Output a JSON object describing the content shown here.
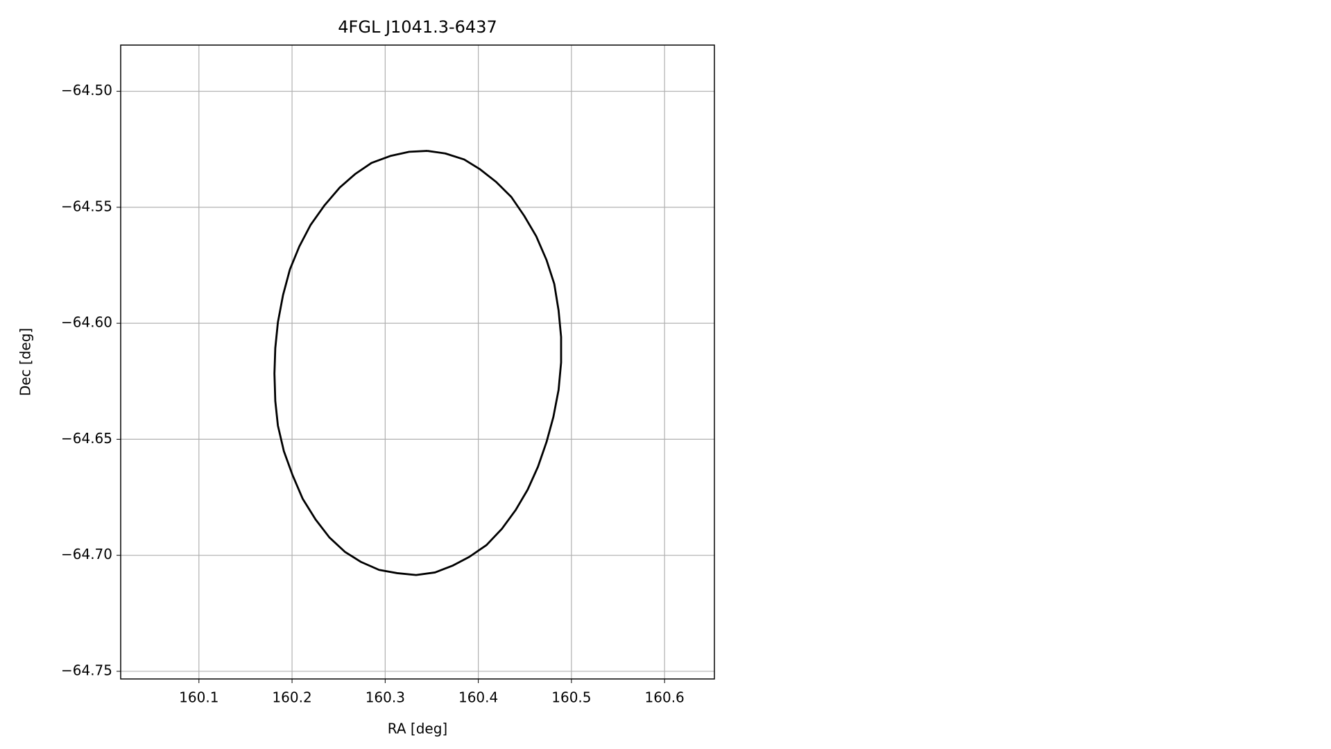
{
  "chart_data": {
    "type": "line",
    "title": "4FGL J1041.3-6437",
    "x_label": "RA [deg]",
    "y_label": "Dec [deg]",
    "color": "#000000",
    "grid": true,
    "xlim": [
      160.016,
      160.6535
    ],
    "ylim": [
      -64.7533,
      -64.4801
    ],
    "xticks": [
      160.1,
      160.2,
      160.3,
      160.4,
      160.5,
      160.6
    ],
    "yticks": [
      {
        "value": -64.75,
        "label": "−64.75"
      },
      {
        "value": -64.7,
        "label": "−64.70"
      },
      {
        "value": -64.65,
        "label": "−64.65"
      },
      {
        "value": -64.6,
        "label": "−64.60"
      },
      {
        "value": -64.55,
        "label": "−64.55"
      },
      {
        "value": -64.5,
        "label": "−64.50"
      }
    ],
    "x": [
      160.3452,
      160.3645,
      160.3848,
      160.4014,
      160.4189,
      160.4355,
      160.4493,
      160.4622,
      160.4733,
      160.4816,
      160.4862,
      160.4889,
      160.4889,
      160.4862,
      160.4806,
      160.4733,
      160.4641,
      160.453,
      160.4401,
      160.4253,
      160.4088,
      160.3903,
      160.3728,
      160.3535,
      160.3332,
      160.3129,
      160.2935,
      160.2742,
      160.2567,
      160.2401,
      160.2253,
      160.2115,
      160.2005,
      160.1912,
      160.1848,
      160.182,
      160.1811,
      160.182,
      160.1848,
      160.1903,
      160.1977,
      160.2078,
      160.2198,
      160.2346,
      160.2512,
      160.2677,
      160.2853,
      160.3055,
      160.3258,
      160.3452
    ],
    "values": [
      -64.5257,
      -64.5268,
      -64.5294,
      -64.5335,
      -64.539,
      -64.5456,
      -64.5537,
      -64.5625,
      -64.5728,
      -64.5831,
      -64.5945,
      -64.6059,
      -64.6169,
      -64.6287,
      -64.6404,
      -64.6511,
      -64.6618,
      -64.6717,
      -64.6805,
      -64.6886,
      -64.6956,
      -64.7007,
      -64.7044,
      -64.7074,
      -64.7085,
      -64.7077,
      -64.7063,
      -64.7029,
      -64.6985,
      -64.6923,
      -64.6846,
      -64.6757,
      -64.6654,
      -64.6551,
      -64.6441,
      -64.6335,
      -64.6217,
      -64.6107,
      -64.5996,
      -64.5879,
      -64.5768,
      -64.5669,
      -64.5577,
      -64.5493,
      -64.5415,
      -64.5357,
      -64.5309,
      -64.5279,
      -64.5261,
      -64.5257
    ]
  }
}
